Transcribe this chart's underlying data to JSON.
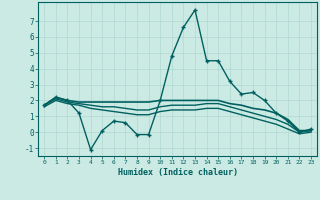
{
  "title": "",
  "xlabel": "Humidex (Indice chaleur)",
  "ylabel": "",
  "bg_color": "#cceae4",
  "line_color": "#006060",
  "grid_color": "#b0d8d0",
  "xlim": [
    -0.5,
    23.5
  ],
  "ylim": [
    -1.5,
    8.2
  ],
  "yticks": [
    -1,
    0,
    1,
    2,
    3,
    4,
    5,
    6,
    7
  ],
  "xtick_labels": [
    "0",
    "1",
    "2",
    "3",
    "4",
    "5",
    "6",
    "7",
    "8",
    "9",
    "10",
    "11",
    "12",
    "13",
    "14",
    "15",
    "16",
    "17",
    "18",
    "19",
    "20",
    "21",
    "22",
    "23"
  ],
  "series": [
    {
      "x": [
        0,
        1,
        2,
        3,
        4,
        5,
        6,
        7,
        8,
        9,
        10,
        11,
        12,
        13,
        14,
        15,
        16,
        17,
        18,
        19,
        20,
        21,
        22,
        23
      ],
      "y": [
        1.7,
        2.2,
        2.0,
        1.2,
        -1.1,
        0.1,
        0.7,
        0.6,
        -0.15,
        -0.15,
        2.0,
        4.8,
        6.6,
        7.7,
        4.5,
        4.5,
        3.2,
        2.4,
        2.5,
        2.0,
        1.2,
        0.7,
        0.0,
        0.2
      ],
      "marker": "+",
      "lw": 1.0,
      "ms": 3.5
    },
    {
      "x": [
        0,
        1,
        2,
        3,
        4,
        5,
        6,
        7,
        8,
        9,
        10,
        11,
        12,
        13,
        14,
        15,
        16,
        17,
        18,
        19,
        20,
        21,
        22,
        23
      ],
      "y": [
        1.7,
        2.2,
        2.0,
        1.9,
        1.9,
        1.9,
        1.9,
        1.9,
        1.9,
        1.9,
        2.0,
        2.0,
        2.0,
        2.0,
        2.0,
        2.0,
        1.8,
        1.7,
        1.5,
        1.4,
        1.2,
        0.8,
        0.1,
        0.1
      ],
      "marker": null,
      "lw": 1.2,
      "ms": 0
    },
    {
      "x": [
        0,
        1,
        2,
        3,
        4,
        5,
        6,
        7,
        8,
        9,
        10,
        11,
        12,
        13,
        14,
        15,
        16,
        17,
        18,
        19,
        20,
        21,
        22,
        23
      ],
      "y": [
        1.7,
        2.1,
        1.9,
        1.8,
        1.7,
        1.6,
        1.6,
        1.5,
        1.4,
        1.4,
        1.6,
        1.7,
        1.7,
        1.7,
        1.8,
        1.8,
        1.6,
        1.4,
        1.2,
        1.0,
        0.8,
        0.5,
        0.0,
        0.1
      ],
      "marker": null,
      "lw": 1.0,
      "ms": 0
    },
    {
      "x": [
        0,
        1,
        2,
        3,
        4,
        5,
        6,
        7,
        8,
        9,
        10,
        11,
        12,
        13,
        14,
        15,
        16,
        17,
        18,
        19,
        20,
        21,
        22,
        23
      ],
      "y": [
        1.6,
        2.0,
        1.8,
        1.7,
        1.5,
        1.4,
        1.3,
        1.2,
        1.1,
        1.1,
        1.3,
        1.4,
        1.4,
        1.4,
        1.5,
        1.5,
        1.3,
        1.1,
        0.9,
        0.7,
        0.5,
        0.2,
        -0.1,
        0.0
      ],
      "marker": null,
      "lw": 1.0,
      "ms": 0
    }
  ]
}
